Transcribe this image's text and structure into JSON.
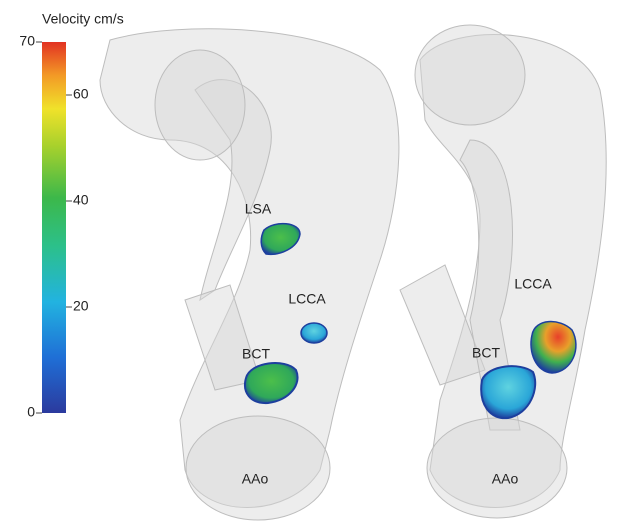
{
  "colorbar": {
    "title": "Velocity cm/s",
    "lim": [
      0,
      70
    ],
    "ticks": [
      0,
      20,
      40,
      60,
      70
    ]
  },
  "panels": [
    {
      "labels": [
        "LSA",
        "LCCA",
        "BCT",
        "AAo"
      ]
    },
    {
      "labels": [
        "LCCA",
        "BCT",
        "AAo"
      ]
    }
  ]
}
